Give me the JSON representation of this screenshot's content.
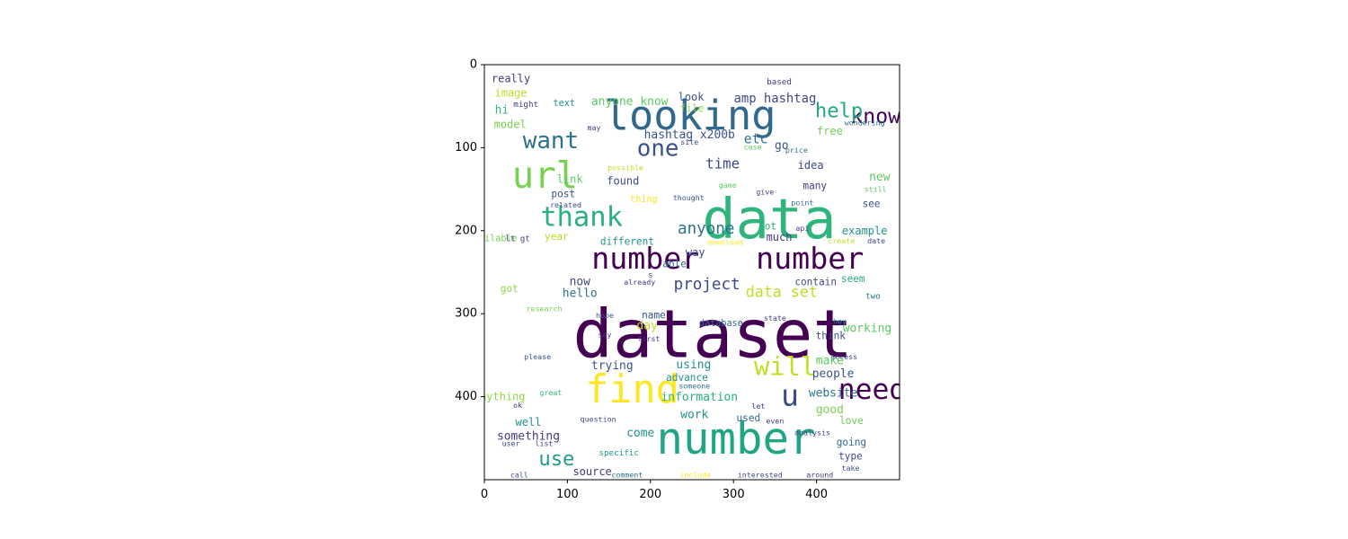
{
  "chart_data": {
    "type": "wordcloud",
    "title": "",
    "xlabel": "",
    "ylabel": "",
    "xlim": [
      0,
      500
    ],
    "ylim": [
      500,
      0
    ],
    "x_ticks": [
      0,
      100,
      200,
      300,
      400
    ],
    "y_ticks": [
      0,
      100,
      200,
      300,
      400
    ],
    "grid": false,
    "background": "#ffffff",
    "words": [
      {
        "text": "dataset",
        "x": 275,
        "y": 325,
        "size": 80,
        "color": "#440154"
      },
      {
        "text": "data",
        "x": 343,
        "y": 186,
        "size": 67,
        "color": "#2fb47c"
      },
      {
        "text": "number",
        "x": 303,
        "y": 451,
        "size": 53,
        "color": "#21a685"
      },
      {
        "text": "looking",
        "x": 248,
        "y": 61,
        "size": 49,
        "color": "#31688e"
      },
      {
        "text": "number",
        "x": 194,
        "y": 233,
        "size": 36,
        "color": "#440154"
      },
      {
        "text": "number",
        "x": 392,
        "y": 233,
        "size": 36,
        "color": "#440154"
      },
      {
        "text": "find",
        "x": 178,
        "y": 392,
        "size": 47,
        "color": "#fde725"
      },
      {
        "text": "url",
        "x": 73,
        "y": 133,
        "size": 44,
        "color": "#7ad151"
      },
      {
        "text": "thank",
        "x": 117,
        "y": 184,
        "size": 33,
        "color": "#2ab07f"
      },
      {
        "text": "want",
        "x": 80,
        "y": 92,
        "size": 28,
        "color": "#2c728e"
      },
      {
        "text": "one",
        "x": 209,
        "y": 101,
        "size": 28,
        "color": "#3b528b"
      },
      {
        "text": "know",
        "x": 471,
        "y": 63,
        "size": 25,
        "color": "#440154"
      },
      {
        "text": "help",
        "x": 427,
        "y": 56,
        "size": 24,
        "color": "#22a884"
      },
      {
        "text": "need",
        "x": 467,
        "y": 392,
        "size": 34,
        "color": "#440154"
      },
      {
        "text": "will",
        "x": 362,
        "y": 363,
        "size": 31,
        "color": "#bddf26"
      },
      {
        "text": "u",
        "x": 368,
        "y": 398,
        "size": 36,
        "color": "#3e4989"
      },
      {
        "text": "use",
        "x": 87,
        "y": 475,
        "size": 24,
        "color": "#1f9e89"
      },
      {
        "text": "project",
        "x": 268,
        "y": 265,
        "size": 19,
        "color": "#3e4989"
      },
      {
        "text": "anyone",
        "x": 267,
        "y": 198,
        "size": 19,
        "color": "#2c728e"
      },
      {
        "text": "data set",
        "x": 358,
        "y": 274,
        "size": 18,
        "color": "#bddf26"
      },
      {
        "text": "time",
        "x": 287,
        "y": 119,
        "size": 17,
        "color": "#3e4989"
      },
      {
        "text": "etc",
        "x": 327,
        "y": 90,
        "size": 16,
        "color": "#2c728e"
      },
      {
        "text": "hashtag x200b",
        "x": 247,
        "y": 85,
        "size": 14,
        "color": "#3b528b"
      },
      {
        "text": "amp hashtag",
        "x": 350,
        "y": 41,
        "size": 15,
        "color": "#3e4989"
      },
      {
        "text": "anyone know",
        "x": 175,
        "y": 45,
        "size": 14,
        "color": "#5ec962"
      },
      {
        "text": "go",
        "x": 358,
        "y": 98,
        "size": 14,
        "color": "#3b528b"
      },
      {
        "text": "idea",
        "x": 393,
        "y": 121,
        "size": 13,
        "color": "#3e4989"
      },
      {
        "text": "free",
        "x": 416,
        "y": 80,
        "size": 13,
        "color": "#6ece58"
      },
      {
        "text": "look",
        "x": 249,
        "y": 39,
        "size": 13,
        "color": "#3b528b"
      },
      {
        "text": "file",
        "x": 250,
        "y": 53,
        "size": 12,
        "color": "#8fd744"
      },
      {
        "text": "really",
        "x": 32,
        "y": 17,
        "size": 13,
        "color": "#443a83"
      },
      {
        "text": "image",
        "x": 32,
        "y": 34,
        "size": 13,
        "color": "#bddf26"
      },
      {
        "text": "might",
        "x": 50,
        "y": 48,
        "size": 10,
        "color": "#443a83"
      },
      {
        "text": "hi",
        "x": 21,
        "y": 55,
        "size": 14,
        "color": "#35b779"
      },
      {
        "text": "text",
        "x": 96,
        "y": 47,
        "size": 11,
        "color": "#21918c"
      },
      {
        "text": "model",
        "x": 31,
        "y": 72,
        "size": 13,
        "color": "#7ad151"
      },
      {
        "text": "may",
        "x": 132,
        "y": 76,
        "size": 9,
        "color": "#443a83"
      },
      {
        "text": "based",
        "x": 355,
        "y": 21,
        "size": 10,
        "color": "#443a83"
      },
      {
        "text": "wondering",
        "x": 458,
        "y": 70,
        "size": 9,
        "color": "#2c728e"
      },
      {
        "text": "site",
        "x": 247,
        "y": 93,
        "size": 9,
        "color": "#3e4989"
      },
      {
        "text": "case",
        "x": 323,
        "y": 99,
        "size": 9,
        "color": "#5ec962"
      },
      {
        "text": "price",
        "x": 376,
        "y": 103,
        "size": 9,
        "color": "#2c728e"
      },
      {
        "text": "possible",
        "x": 170,
        "y": 124,
        "size": 9,
        "color": "#bddf26"
      },
      {
        "text": "link",
        "x": 103,
        "y": 138,
        "size": 13,
        "color": "#5ec962"
      },
      {
        "text": "found",
        "x": 167,
        "y": 140,
        "size": 13,
        "color": "#3e4989"
      },
      {
        "text": "post",
        "x": 95,
        "y": 156,
        "size": 12,
        "color": "#3b528b"
      },
      {
        "text": "related",
        "x": 98,
        "y": 169,
        "size": 9,
        "color": "#3e4989"
      },
      {
        "text": "thing",
        "x": 192,
        "y": 163,
        "size": 11,
        "color": "#fde725"
      },
      {
        "text": "thought",
        "x": 246,
        "y": 160,
        "size": 9,
        "color": "#3b528b"
      },
      {
        "text": "game",
        "x": 293,
        "y": 145,
        "size": 9,
        "color": "#5ec962"
      },
      {
        "text": "give",
        "x": 338,
        "y": 153,
        "size": 9,
        "color": "#443a83"
      },
      {
        "text": "many",
        "x": 398,
        "y": 146,
        "size": 12,
        "color": "#443a83"
      },
      {
        "text": "new",
        "x": 476,
        "y": 136,
        "size": 14,
        "color": "#5ec962"
      },
      {
        "text": "still",
        "x": 471,
        "y": 150,
        "size": 9,
        "color": "#5ec962"
      },
      {
        "text": "point",
        "x": 383,
        "y": 166,
        "size": 9,
        "color": "#2c728e"
      },
      {
        "text": "see",
        "x": 466,
        "y": 168,
        "size": 12,
        "color": "#3b528b"
      },
      {
        "text": "available",
        "x": 10,
        "y": 210,
        "size": 11,
        "color": "#7ad151"
      },
      {
        "text": "lt gt",
        "x": 40,
        "y": 210,
        "size": 10,
        "color": "#443a83"
      },
      {
        "text": "year",
        "x": 87,
        "y": 207,
        "size": 12,
        "color": "#b5de2b"
      },
      {
        "text": "different",
        "x": 172,
        "y": 213,
        "size": 12,
        "color": "#21918c"
      },
      {
        "text": "download",
        "x": 290,
        "y": 214,
        "size": 9,
        "color": "#fde725"
      },
      {
        "text": "lot",
        "x": 341,
        "y": 195,
        "size": 12,
        "color": "#2ab07f"
      },
      {
        "text": "much",
        "x": 355,
        "y": 208,
        "size": 13,
        "color": "#443a83"
      },
      {
        "text": "api",
        "x": 383,
        "y": 197,
        "size": 9,
        "color": "#443a83"
      },
      {
        "text": "example",
        "x": 458,
        "y": 200,
        "size": 13,
        "color": "#21918c"
      },
      {
        "text": "create",
        "x": 430,
        "y": 212,
        "size": 9,
        "color": "#bddf26"
      },
      {
        "text": "date",
        "x": 472,
        "y": 212,
        "size": 9,
        "color": "#3e4989"
      },
      {
        "text": "way",
        "x": 254,
        "y": 226,
        "size": 13,
        "color": "#3e4989"
      },
      {
        "text": "able",
        "x": 229,
        "y": 240,
        "size": 12,
        "color": "#31688e"
      },
      {
        "text": "s",
        "x": 200,
        "y": 254,
        "size": 10,
        "color": "#3b528b"
      },
      {
        "text": "now",
        "x": 115,
        "y": 262,
        "size": 14,
        "color": "#3e4989"
      },
      {
        "text": "already",
        "x": 187,
        "y": 262,
        "size": 9,
        "color": "#443a83"
      },
      {
        "text": "got",
        "x": 30,
        "y": 270,
        "size": 12,
        "color": "#8fd744"
      },
      {
        "text": "hello",
        "x": 115,
        "y": 276,
        "size": 14,
        "color": "#2c728e"
      },
      {
        "text": "contain",
        "x": 399,
        "y": 262,
        "size": 12,
        "color": "#3e4989"
      },
      {
        "text": "seem",
        "x": 444,
        "y": 258,
        "size": 12,
        "color": "#2ab07f"
      },
      {
        "text": "two",
        "x": 468,
        "y": 279,
        "size": 10,
        "color": "#2c728e"
      },
      {
        "text": "research",
        "x": 72,
        "y": 294,
        "size": 9,
        "color": "#7ad151"
      },
      {
        "text": "hope",
        "x": 145,
        "y": 302,
        "size": 9,
        "color": "#3b528b"
      },
      {
        "text": "name",
        "x": 204,
        "y": 302,
        "size": 12,
        "color": "#3b528b"
      },
      {
        "text": "day",
        "x": 196,
        "y": 315,
        "size": 14,
        "color": "#bddf26"
      },
      {
        "text": "database",
        "x": 285,
        "y": 312,
        "size": 11,
        "color": "#31688e"
      },
      {
        "text": "state",
        "x": 350,
        "y": 305,
        "size": 9,
        "color": "#443a83"
      },
      {
        "text": "hey",
        "x": 428,
        "y": 309,
        "size": 9,
        "color": "#21918c"
      },
      {
        "text": "working",
        "x": 461,
        "y": 318,
        "size": 14,
        "color": "#5ec962"
      },
      {
        "text": "say",
        "x": 145,
        "y": 325,
        "size": 9,
        "color": "#443a83"
      },
      {
        "text": "first",
        "x": 198,
        "y": 330,
        "size": 9,
        "color": "#443a83"
      },
      {
        "text": "think",
        "x": 417,
        "y": 327,
        "size": 12,
        "color": "#3b528b"
      },
      {
        "text": "please",
        "x": 64,
        "y": 352,
        "size": 9,
        "color": "#3b528b"
      },
      {
        "text": "access",
        "x": 433,
        "y": 352,
        "size": 9,
        "color": "#3e4989"
      },
      {
        "text": "trying",
        "x": 154,
        "y": 363,
        "size": 14,
        "color": "#3b528b"
      },
      {
        "text": "using",
        "x": 252,
        "y": 362,
        "size": 14,
        "color": "#21918c"
      },
      {
        "text": "make",
        "x": 416,
        "y": 357,
        "size": 14,
        "color": "#5ec962"
      },
      {
        "text": "advance",
        "x": 244,
        "y": 377,
        "size": 12,
        "color": "#21918c"
      },
      {
        "text": "someone",
        "x": 253,
        "y": 387,
        "size": 9,
        "color": "#2c728e"
      },
      {
        "text": "people",
        "x": 420,
        "y": 373,
        "size": 14,
        "color": "#3b528b"
      },
      {
        "text": "anything",
        "x": 18,
        "y": 400,
        "size": 13,
        "color": "#8fd744"
      },
      {
        "text": "great",
        "x": 80,
        "y": 395,
        "size": 9,
        "color": "#35b779"
      },
      {
        "text": "information",
        "x": 259,
        "y": 401,
        "size": 14,
        "color": "#2ab07f"
      },
      {
        "text": "website",
        "x": 420,
        "y": 396,
        "size": 14,
        "color": "#2c728e"
      },
      {
        "text": "ok",
        "x": 40,
        "y": 410,
        "size": 9,
        "color": "#443a83"
      },
      {
        "text": "let",
        "x": 330,
        "y": 411,
        "size": 9,
        "color": "#443a83"
      },
      {
        "text": "good",
        "x": 416,
        "y": 416,
        "size": 14,
        "color": "#7ad151"
      },
      {
        "text": "work",
        "x": 253,
        "y": 422,
        "size": 14,
        "color": "#21918c"
      },
      {
        "text": "come",
        "x": 188,
        "y": 444,
        "size": 14,
        "color": "#21918c"
      },
      {
        "text": "well",
        "x": 53,
        "y": 431,
        "size": 13,
        "color": "#21918c"
      },
      {
        "text": "used",
        "x": 318,
        "y": 426,
        "size": 12,
        "color": "#31688e"
      },
      {
        "text": "love",
        "x": 442,
        "y": 429,
        "size": 12,
        "color": "#6ece58"
      },
      {
        "text": "question",
        "x": 137,
        "y": 427,
        "size": 9,
        "color": "#3e4989"
      },
      {
        "text": "even",
        "x": 350,
        "y": 429,
        "size": 9,
        "color": "#443a83"
      },
      {
        "text": "analysis",
        "x": 395,
        "y": 443,
        "size": 9,
        "color": "#3e4989"
      },
      {
        "text": "something",
        "x": 53,
        "y": 448,
        "size": 14,
        "color": "#443a83"
      },
      {
        "text": "going",
        "x": 442,
        "y": 455,
        "size": 12,
        "color": "#31688e"
      },
      {
        "text": "user",
        "x": 32,
        "y": 456,
        "size": 9,
        "color": "#3e4989"
      },
      {
        "text": "list",
        "x": 72,
        "y": 456,
        "size": 9,
        "color": "#443a83"
      },
      {
        "text": "specific",
        "x": 162,
        "y": 468,
        "size": 10,
        "color": "#1f9e89"
      },
      {
        "text": "type",
        "x": 441,
        "y": 472,
        "size": 12,
        "color": "#3e4989"
      },
      {
        "text": "take",
        "x": 441,
        "y": 486,
        "size": 9,
        "color": "#3b528b"
      },
      {
        "text": "source",
        "x": 130,
        "y": 490,
        "size": 13,
        "color": "#443a83"
      },
      {
        "text": "call",
        "x": 42,
        "y": 494,
        "size": 9,
        "color": "#3b528b"
      },
      {
        "text": "comment",
        "x": 172,
        "y": 494,
        "size": 9,
        "color": "#2c728e"
      },
      {
        "text": "include",
        "x": 254,
        "y": 494,
        "size": 9,
        "color": "#fde725"
      },
      {
        "text": "interested",
        "x": 332,
        "y": 494,
        "size": 9,
        "color": "#3e4989"
      },
      {
        "text": "around",
        "x": 404,
        "y": 494,
        "size": 9,
        "color": "#443a83"
      }
    ]
  }
}
